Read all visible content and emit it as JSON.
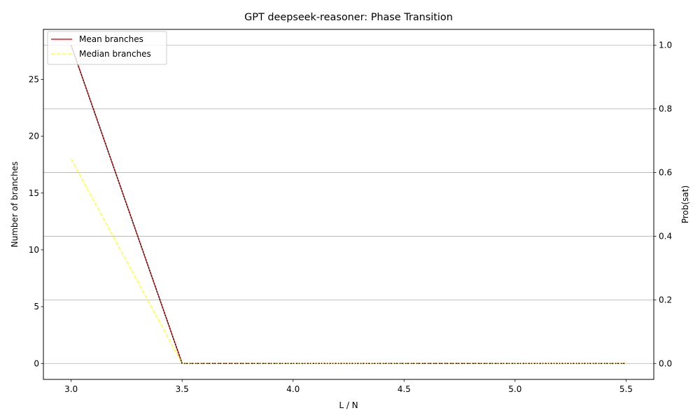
{
  "chart_data": {
    "type": "line",
    "title": "GPT deepseek-reasoner: Phase Transition",
    "xlabel": "L / N",
    "ylabel": "Number of branches",
    "y2label": "Prob(sat)",
    "x": [
      3.0,
      3.5,
      4.0,
      4.5,
      5.0,
      5.5
    ],
    "xticks": [
      "3.0",
      "3.5",
      "4.0",
      "4.5",
      "5.0",
      "5.5"
    ],
    "xlim": [
      2.875,
      5.625
    ],
    "yticks": [
      "0",
      "5",
      "10",
      "15",
      "20",
      "25"
    ],
    "ylim": [
      -1.4,
      29.4
    ],
    "y2ticks": [
      "0.0",
      "0.2",
      "0.4",
      "0.6",
      "0.8",
      "1.0"
    ],
    "y2lim": [
      -0.05,
      1.05
    ],
    "grid": "horizontal lines at right-axis ticks",
    "legend_position": "upper-left",
    "series": [
      {
        "name": "Mean branches",
        "axis": "left",
        "values": [
          28,
          0,
          0,
          0,
          0,
          0
        ],
        "color": "#d62728",
        "dash": "solid"
      },
      {
        "name": "Median branches",
        "axis": "left",
        "values": [
          18,
          0,
          0,
          0,
          0,
          0
        ],
        "color": "#ffff33",
        "dash": "dashed"
      },
      {
        "name": "",
        "axis": "right",
        "values": [
          1.0,
          0.0,
          0.0,
          0.0,
          0.0,
          0.0
        ],
        "color": "#000000",
        "dash": "dotted"
      }
    ]
  }
}
